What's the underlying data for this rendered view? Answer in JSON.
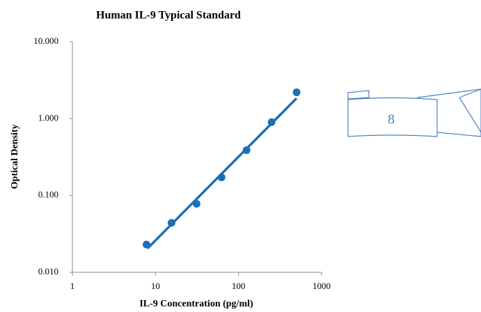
{
  "chart_data": {
    "type": "scatter",
    "title": "Human IL-9 Typical Standard",
    "x_label": "IL-9 Concentration (pg/ml)",
    "y_label": "Optical Density",
    "x_scale": "log",
    "y_scale": "log",
    "xlim": [
      1,
      1000
    ],
    "ylim": [
      0.01,
      10
    ],
    "xticks": [
      1,
      10,
      100,
      1000
    ],
    "yticks": [
      {
        "value": 0.01,
        "label": "0.010"
      },
      {
        "value": 0.1,
        "label": "0.100"
      },
      {
        "value": 1,
        "label": "1.000"
      },
      {
        "value": 10,
        "label": "10.000"
      }
    ],
    "series": [
      {
        "mode": "markers",
        "color": "#1f6fb5",
        "x": [
          7.8,
          15.6,
          31.25,
          62.5,
          125,
          250,
          500
        ],
        "values": [
          0.023,
          0.044,
          0.078,
          0.172,
          0.389,
          0.9,
          2.2
        ]
      },
      {
        "mode": "line",
        "color": "#1f6fb5",
        "x": [
          8,
          500
        ],
        "values": [
          0.0204,
          1.84
        ]
      }
    ]
  },
  "page_number": "8"
}
